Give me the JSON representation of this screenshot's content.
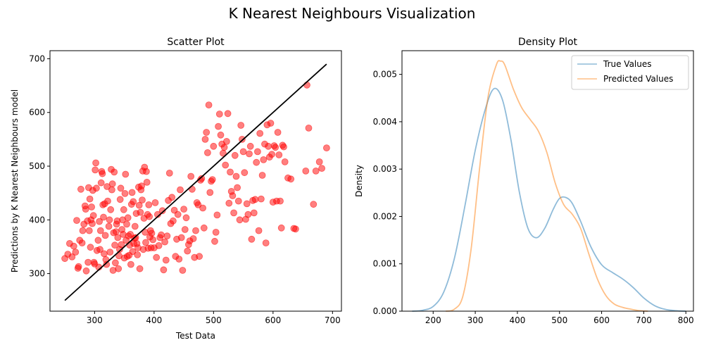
{
  "figure": {
    "suptitle": "K Nearest Neighbours Visualization"
  },
  "chart_data": [
    {
      "type": "scatter",
      "title": "Scatter Plot",
      "xlabel": "Test Data",
      "ylabel": "Predictions by K Nearest Neighbours model",
      "xlim": [
        225,
        715
      ],
      "ylim": [
        230,
        715
      ],
      "xticks": [
        300,
        400,
        500,
        600,
        700
      ],
      "yticks": [
        300,
        400,
        500,
        600,
        700
      ],
      "grid": false,
      "point_color": "#ff0000",
      "line_color": "#000000",
      "line": {
        "x": [
          250,
          690
        ],
        "y": [
          250,
          690
        ]
      },
      "points": [
        [
          250,
          328
        ],
        [
          255,
          336
        ],
        [
          258,
          356
        ],
        [
          262,
          331
        ],
        [
          265,
          351
        ],
        [
          268,
          340
        ],
        [
          270,
          399
        ],
        [
          272,
          310
        ],
        [
          273,
          313
        ],
        [
          275,
          362
        ],
        [
          277,
          457
        ],
        [
          279,
          357
        ],
        [
          280,
          380
        ],
        [
          282,
          392
        ],
        [
          284,
          426
        ],
        [
          285,
          420
        ],
        [
          286,
          305
        ],
        [
          288,
          398
        ],
        [
          289,
          321
        ],
        [
          290,
          460
        ],
        [
          291,
          380
        ],
        [
          292,
          439
        ],
        [
          293,
          349
        ],
        [
          294,
          400
        ],
        [
          295,
          424
        ],
        [
          296,
          393
        ],
        [
          297,
          455
        ],
        [
          298,
          408
        ],
        [
          299,
          321
        ],
        [
          300,
          318
        ],
        [
          301,
          493
        ],
        [
          302,
          506
        ],
        [
          303,
          459
        ],
        [
          304,
          343
        ],
        [
          306,
          362
        ],
        [
          307,
          312
        ],
        [
          308,
          397
        ],
        [
          309,
          345
        ],
        [
          310,
          380
        ],
        [
          311,
          469
        ],
        [
          312,
          490
        ],
        [
          313,
          486
        ],
        [
          314,
          428
        ],
        [
          315,
          405
        ],
        [
          316,
          337
        ],
        [
          317,
          430
        ],
        [
          318,
          371
        ],
        [
          319,
          326
        ],
        [
          320,
          317
        ],
        [
          321,
          462
        ],
        [
          322,
          435
        ],
        [
          324,
          388
        ],
        [
          325,
          400
        ],
        [
          326,
          340
        ],
        [
          327,
          419
        ],
        [
          328,
          494
        ],
        [
          329,
          456
        ],
        [
          330,
          467
        ],
        [
          331,
          306
        ],
        [
          332,
          376
        ],
        [
          333,
          489
        ],
        [
          334,
          353
        ],
        [
          335,
          320
        ],
        [
          336,
          378
        ],
        [
          337,
          392
        ],
        [
          338,
          398
        ],
        [
          339,
          367
        ],
        [
          340,
          309
        ],
        [
          341,
          333
        ],
        [
          342,
          345
        ],
        [
          343,
          438
        ],
        [
          344,
          459
        ],
        [
          345,
          354
        ],
        [
          346,
          382
        ],
        [
          347,
          400
        ],
        [
          348,
          373
        ],
        [
          349,
          419
        ],
        [
          350,
          329
        ],
        [
          351,
          449
        ],
        [
          352,
          485
        ],
        [
          353,
          362
        ],
        [
          354,
          392
        ],
        [
          355,
          332
        ],
        [
          356,
          404
        ],
        [
          357,
          370
        ],
        [
          358,
          334
        ],
        [
          359,
          353
        ],
        [
          360,
          373
        ],
        [
          361,
          317
        ],
        [
          362,
          429
        ],
        [
          363,
          451
        ],
        [
          364,
          341
        ],
        [
          365,
          434
        ],
        [
          366,
          356
        ],
        [
          367,
          366
        ],
        [
          368,
          388
        ],
        [
          369,
          367
        ],
        [
          370,
          412
        ],
        [
          371,
          356
        ],
        [
          372,
          335
        ],
        [
          373,
          348
        ],
        [
          374,
          461
        ],
        [
          375,
          427
        ],
        [
          376,
          309
        ],
        [
          377,
          414
        ],
        [
          378,
          456
        ],
        [
          379,
          463
        ],
        [
          380,
          437
        ],
        [
          381,
          491
        ],
        [
          382,
          345
        ],
        [
          383,
          403
        ],
        [
          384,
          498
        ],
        [
          385,
          377
        ],
        [
          386,
          358
        ],
        [
          387,
          490
        ],
        [
          388,
          470
        ],
        [
          389,
          410
        ],
        [
          390,
          347
        ],
        [
          391,
          428
        ],
        [
          392,
          406
        ],
        [
          393,
          368
        ],
        [
          394,
          380
        ],
        [
          395,
          348
        ],
        [
          396,
          375
        ],
        [
          398,
          363
        ],
        [
          400,
          348
        ],
        [
          402,
          432
        ],
        [
          404,
          330
        ],
        [
          406,
          410
        ],
        [
          408,
          352
        ],
        [
          410,
          367
        ],
        [
          412,
          372
        ],
        [
          414,
          417
        ],
        [
          416,
          307
        ],
        [
          418,
          359
        ],
        [
          420,
          325
        ],
        [
          422,
          370
        ],
        [
          424,
          436
        ],
        [
          426,
          487
        ],
        [
          428,
          393
        ],
        [
          430,
          442
        ],
        [
          432,
          398
        ],
        [
          434,
          418
        ],
        [
          436,
          332
        ],
        [
          438,
          364
        ],
        [
          440,
          410
        ],
        [
          442,
          327
        ],
        [
          444,
          456
        ],
        [
          446,
          367
        ],
        [
          448,
          306
        ],
        [
          450,
          420
        ],
        [
          452,
          382
        ],
        [
          454,
          404
        ],
        [
          456,
          342
        ],
        [
          458,
          354
        ],
        [
          460,
          361
        ],
        [
          462,
          481
        ],
        [
          464,
          457
        ],
        [
          466,
          365
        ],
        [
          468,
          330
        ],
        [
          470,
          380
        ],
        [
          472,
          432
        ],
        [
          474,
          428
        ],
        [
          476,
          332
        ],
        [
          478,
          474
        ],
        [
          480,
          477
        ],
        [
          482,
          422
        ],
        [
          484,
          385
        ],
        [
          486,
          550
        ],
        [
          488,
          563
        ],
        [
          490,
          525
        ],
        [
          492,
          614
        ],
        [
          494,
          451
        ],
        [
          496,
          472
        ],
        [
          498,
          475
        ],
        [
          500,
          537
        ],
        [
          502,
          360
        ],
        [
          504,
          377
        ],
        [
          506,
          409
        ],
        [
          508,
          574
        ],
        [
          510,
          597
        ],
        [
          512,
          558
        ],
        [
          514,
          541
        ],
        [
          516,
          524
        ],
        [
          518,
          535
        ],
        [
          520,
          502
        ],
        [
          522,
          546
        ],
        [
          524,
          598
        ],
        [
          526,
          431
        ],
        [
          528,
          489
        ],
        [
          530,
          453
        ],
        [
          532,
          445
        ],
        [
          534,
          413
        ],
        [
          536,
          520
        ],
        [
          538,
          481
        ],
        [
          540,
          460
        ],
        [
          542,
          435
        ],
        [
          544,
          400
        ],
        [
          546,
          576
        ],
        [
          548,
          550
        ],
        [
          550,
          527
        ],
        [
          552,
          488
        ],
        [
          554,
          401
        ],
        [
          556,
          430
        ],
        [
          558,
          410
        ],
        [
          560,
          523
        ],
        [
          562,
          537
        ],
        [
          564,
          364
        ],
        [
          566,
          436
        ],
        [
          568,
          413
        ],
        [
          570,
          438
        ],
        [
          572,
          507
        ],
        [
          574,
          527
        ],
        [
          576,
          380
        ],
        [
          578,
          561
        ],
        [
          580,
          439
        ],
        [
          582,
          483
        ],
        [
          584,
          512
        ],
        [
          586,
          541
        ],
        [
          588,
          357
        ],
        [
          590,
          577
        ],
        [
          592,
          537
        ],
        [
          594,
          517
        ],
        [
          596,
          580
        ],
        [
          598,
          522
        ],
        [
          600,
          433
        ],
        [
          602,
          538
        ],
        [
          604,
          535
        ],
        [
          606,
          435
        ],
        [
          608,
          563
        ],
        [
          610,
          521
        ],
        [
          612,
          435
        ],
        [
          614,
          385
        ],
        [
          616,
          539
        ],
        [
          618,
          536
        ],
        [
          620,
          508
        ],
        [
          625,
          478
        ],
        [
          630,
          476
        ],
        [
          635,
          384
        ],
        [
          638,
          383
        ],
        [
          655,
          491
        ],
        [
          657,
          651
        ],
        [
          660,
          571
        ],
        [
          668,
          429
        ],
        [
          672,
          491
        ],
        [
          678,
          508
        ],
        [
          682,
          496
        ],
        [
          690,
          534
        ]
      ]
    },
    {
      "type": "line",
      "title": "Density Plot",
      "xlabel": "",
      "ylabel": "Density",
      "xlim": [
        126,
        818
      ],
      "ylim": [
        0,
        0.0055
      ],
      "xticks": [
        200,
        300,
        400,
        500,
        600,
        700,
        800
      ],
      "yticks": [
        0.0,
        0.001,
        0.002,
        0.003,
        0.004,
        0.005
      ],
      "ytick_labels": [
        "0.000",
        "0.001",
        "0.002",
        "0.003",
        "0.004",
        "0.005"
      ],
      "grid": false,
      "legend": "top-right",
      "series": [
        {
          "name": "True Values",
          "color": "#1f77b4",
          "x": [
            150,
            175,
            200,
            225,
            250,
            275,
            300,
            325,
            345,
            365,
            385,
            405,
            425,
            445,
            465,
            485,
            500,
            515,
            530,
            550,
            575,
            600,
            625,
            650,
            675,
            700,
            725,
            750,
            775,
            800
          ],
          "y": [
            0.0,
            2e-05,
            0.0001,
            0.0004,
            0.0011,
            0.0022,
            0.0034,
            0.0043,
            0.0047,
            0.00445,
            0.0036,
            0.0025,
            0.00175,
            0.00155,
            0.00175,
            0.00215,
            0.00238,
            0.0024,
            0.00228,
            0.0019,
            0.00135,
            0.00098,
            0.00082,
            0.00068,
            0.0005,
            0.00028,
            0.00012,
            4e-05,
            1e-05,
            0.0
          ]
        },
        {
          "name": "Predicted Values",
          "color": "#ff7f0e",
          "x": [
            230,
            250,
            270,
            290,
            310,
            330,
            350,
            360,
            370,
            390,
            410,
            430,
            450,
            470,
            490,
            510,
            530,
            550,
            570,
            590,
            610,
            630,
            650,
            670,
            690,
            710
          ],
          "y": [
            0.0,
            4e-05,
            0.0003,
            0.0013,
            0.003,
            0.0045,
            0.0052,
            0.00528,
            0.0052,
            0.0047,
            0.0043,
            0.00405,
            0.0038,
            0.00335,
            0.0027,
            0.00225,
            0.00205,
            0.00175,
            0.0012,
            0.00068,
            0.00033,
            0.00015,
            8e-05,
            4e-05,
            1e-05,
            0.0
          ]
        }
      ]
    }
  ]
}
